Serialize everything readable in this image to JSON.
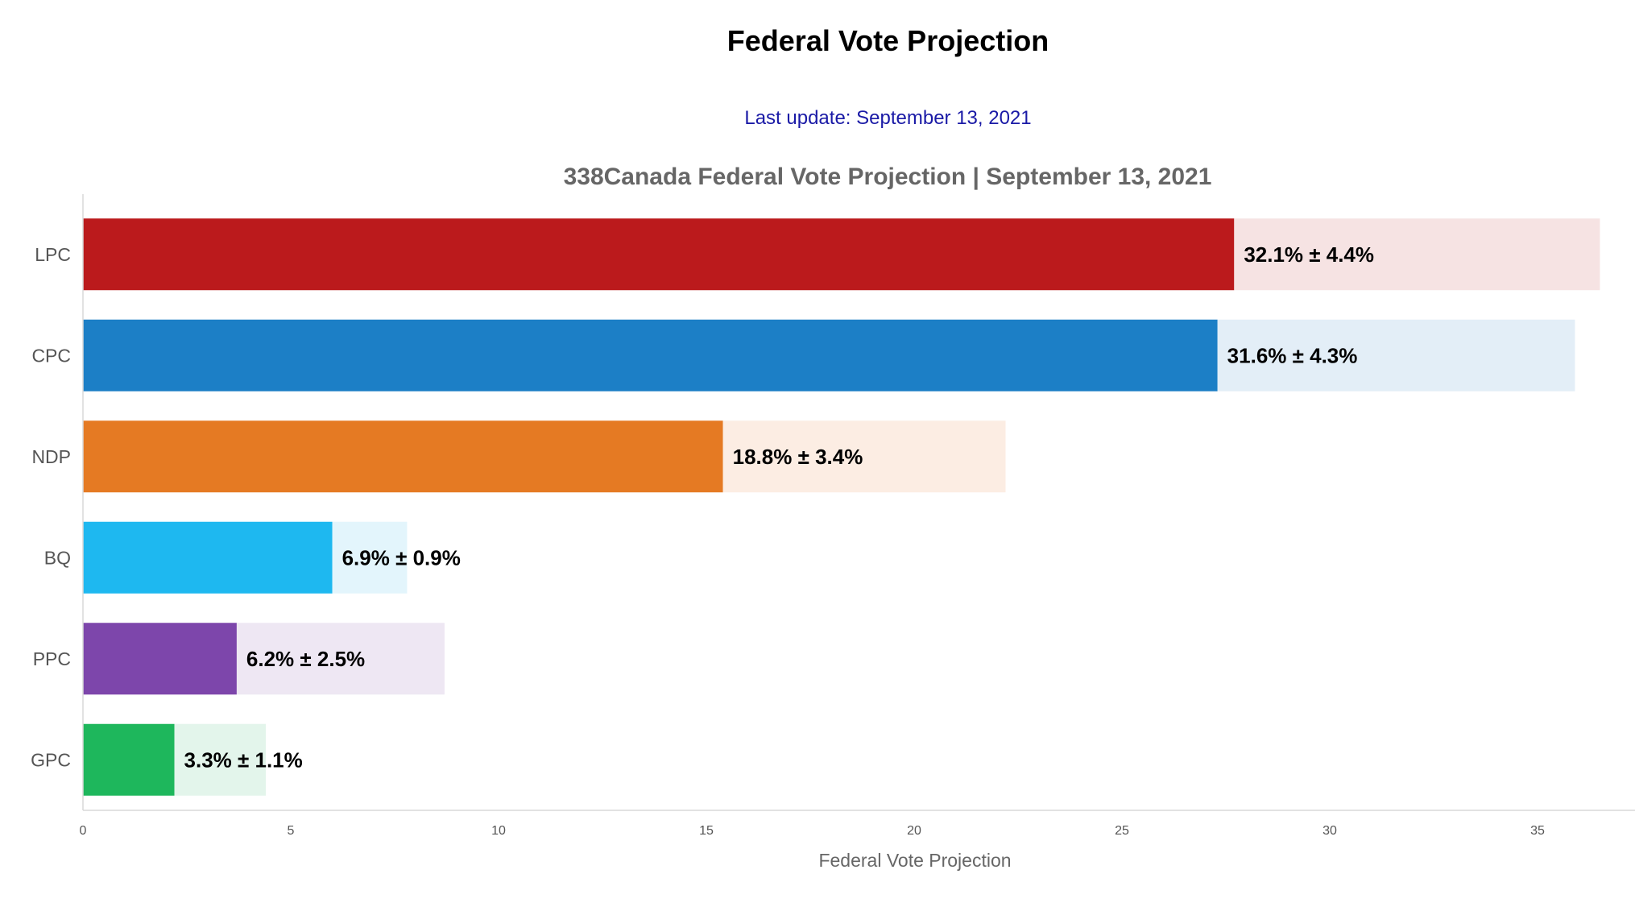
{
  "header": {
    "title": "Federal Vote Projection",
    "last_update": "Last update: September 13, 2021"
  },
  "chart_data": {
    "type": "bar",
    "orientation": "horizontal",
    "title": "338Canada Federal Vote Projection | September 13, 2021",
    "xlabel": "Federal Vote Projection",
    "ylabel": "",
    "xlim": [
      0,
      37
    ],
    "xticks": [
      0,
      5,
      10,
      15,
      20,
      25,
      30,
      35
    ],
    "grid": false,
    "categories": [
      "LPC",
      "CPC",
      "NDP",
      "BQ",
      "PPC",
      "GPC"
    ],
    "series": [
      {
        "values": [
          27.7,
          27.3,
          15.4,
          6.0,
          3.7,
          2.2
        ],
        "colors": [
          "#bb1a1c",
          "#1c7fc6",
          "#e57a23",
          "#1eb8f0",
          "#7d46ab",
          "#1eb75c"
        ]
      },
      {
        "values": [
          8.8,
          8.6,
          6.8,
          1.8,
          5.0,
          2.2
        ],
        "colors": [
          "#f6e3e3",
          "#e3eef7",
          "#fcede3",
          "#e3f5fc",
          "#eee7f3",
          "#e3f5eb"
        ]
      }
    ],
    "data_labels": [
      "32.1% ± 4.4%",
      "31.6% ± 4.3%",
      "18.8% ± 3.4%",
      "6.9% ± 0.9%",
      "6.2% ± 2.5%",
      "3.3% ± 1.1%"
    ]
  }
}
